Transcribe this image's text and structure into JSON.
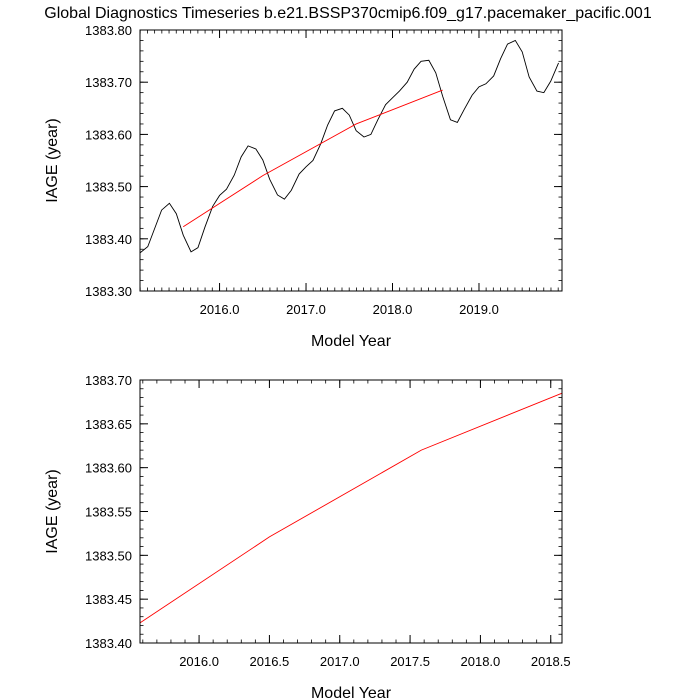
{
  "page_title": "Global Diagnostics Timeseries b.e21.BSSP370cmip6.f09_g17.pacemaker_pacific.001",
  "colors": {
    "monthly_line": "#000000",
    "trend_line": "#ff0000",
    "frame": "#000000"
  },
  "chart_data": [
    {
      "type": "line",
      "xlabel": "Model Year",
      "ylabel": "IAGE (year)",
      "xlim": [
        2015.08,
        2019.96
      ],
      "ylim": [
        1383.3,
        1383.8
      ],
      "xticks": [
        2016.0,
        2017.0,
        2018.0,
        2019.0
      ],
      "xtick_labels": [
        "2016.0",
        "2017.0",
        "2018.0",
        "2019.0"
      ],
      "yticks": [
        1383.3,
        1383.4,
        1383.5,
        1383.6,
        1383.7,
        1383.8
      ],
      "ytick_labels": [
        "1383.30",
        "1383.40",
        "1383.50",
        "1383.60",
        "1383.70",
        "1383.80"
      ],
      "grid": false,
      "series": [
        {
          "color": "#000000",
          "x": [
            2015.08,
            2015.17,
            2015.25,
            2015.33,
            2015.42,
            2015.5,
            2015.58,
            2015.67,
            2015.75,
            2015.83,
            2015.92,
            2016.0,
            2016.08,
            2016.17,
            2016.25,
            2016.33,
            2016.42,
            2016.5,
            2016.58,
            2016.67,
            2016.75,
            2016.83,
            2016.92,
            2017.0,
            2017.08,
            2017.17,
            2017.25,
            2017.33,
            2017.42,
            2017.5,
            2017.58,
            2017.67,
            2017.75,
            2017.83,
            2017.92,
            2018.0,
            2018.08,
            2018.17,
            2018.25,
            2018.33,
            2018.42,
            2018.5,
            2018.58,
            2018.67,
            2018.75,
            2018.83,
            2018.92,
            2019.0,
            2019.08,
            2019.17,
            2019.25,
            2019.33,
            2019.42,
            2019.5,
            2019.58,
            2019.67,
            2019.75,
            2019.83,
            2019.92
          ],
          "values": [
            1383.373,
            1383.385,
            1383.42,
            1383.455,
            1383.468,
            1383.448,
            1383.407,
            1383.375,
            1383.383,
            1383.422,
            1383.462,
            1383.483,
            1383.495,
            1383.522,
            1383.557,
            1383.578,
            1383.572,
            1383.551,
            1383.514,
            1383.484,
            1383.476,
            1383.493,
            1383.524,
            1383.538,
            1383.55,
            1383.582,
            1383.618,
            1383.645,
            1383.65,
            1383.637,
            1383.607,
            1383.595,
            1383.6,
            1383.628,
            1383.657,
            1383.67,
            1383.683,
            1383.7,
            1383.725,
            1383.74,
            1383.742,
            1383.718,
            1383.673,
            1383.628,
            1383.623,
            1383.648,
            1383.675,
            1383.691,
            1383.697,
            1383.712,
            1383.745,
            1383.773,
            1383.78,
            1383.758,
            1383.71,
            1383.683,
            1383.68,
            1383.702,
            1383.737
          ]
        },
        {
          "color": "#ff0000",
          "x": [
            2015.58,
            2016.5,
            2017.58,
            2018.58
          ],
          "values": [
            1383.423,
            1383.521,
            1383.62,
            1383.685
          ]
        }
      ]
    },
    {
      "type": "line",
      "xlabel": "Model Year",
      "ylabel": "IAGE (year)",
      "xlim": [
        2015.58,
        2018.58
      ],
      "ylim": [
        1383.4,
        1383.7
      ],
      "xticks": [
        2016.0,
        2016.5,
        2017.0,
        2017.5,
        2018.0,
        2018.5
      ],
      "xtick_labels": [
        "2016.0",
        "2016.5",
        "2017.0",
        "2017.5",
        "2018.0",
        "2018.5"
      ],
      "yticks": [
        1383.4,
        1383.45,
        1383.5,
        1383.55,
        1383.6,
        1383.65,
        1383.7
      ],
      "ytick_labels": [
        "1383.40",
        "1383.45",
        "1383.50",
        "1383.55",
        "1383.60",
        "1383.65",
        "1383.70"
      ],
      "grid": false,
      "series": [
        {
          "color": "#ff0000",
          "x": [
            2015.58,
            2016.5,
            2017.58,
            2018.58
          ],
          "values": [
            1383.423,
            1383.521,
            1383.62,
            1383.685
          ]
        }
      ]
    }
  ]
}
